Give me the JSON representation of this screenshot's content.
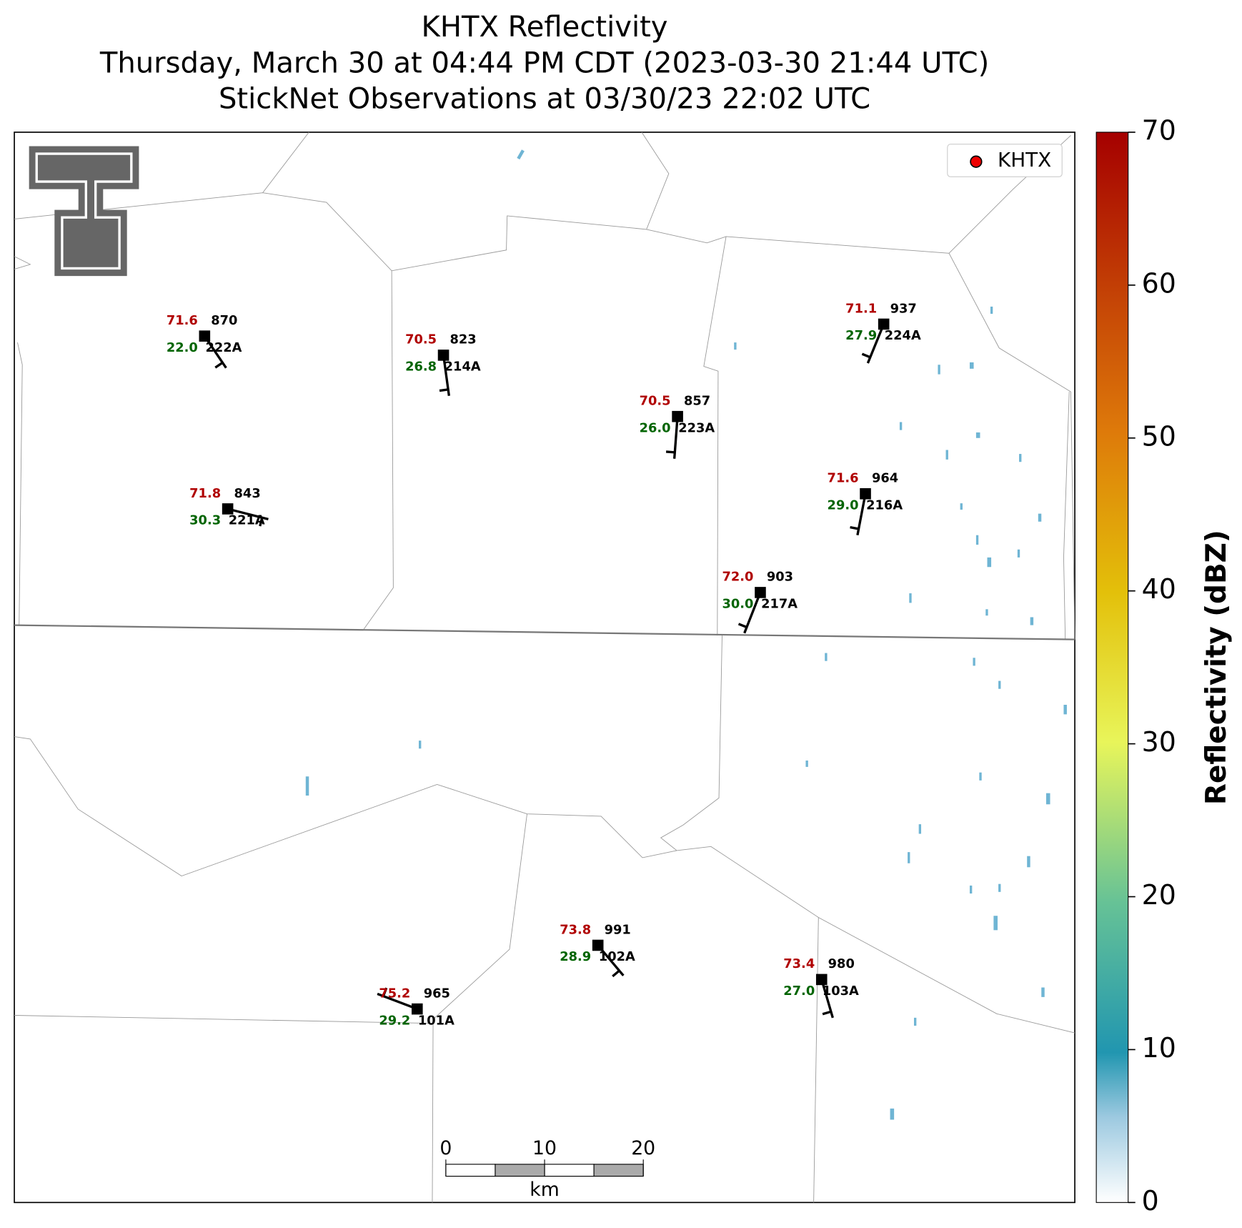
{
  "title": [
    "KHTX Reflectivity",
    "Thursday, March 30 at 04:44 PM CDT (2023-03-30 21:44 UTC)",
    "StickNet Observations at 03/30/23 22:02 UTC"
  ],
  "legend": "KHTX",
  "stations": [
    {
      "id": "222A",
      "temperature": "71.6",
      "dewpoint": "22.0",
      "pressure": 870
    },
    {
      "id": "214A",
      "temperature": "70.5",
      "dewpoint": "26.8",
      "pressure": 823
    },
    {
      "id": "223A",
      "temperature": "70.5",
      "dewpoint": "26.0",
      "pressure": 857
    },
    {
      "id": "221A",
      "temperature": "71.8",
      "dewpoint": "30.3",
      "pressure": 843
    },
    {
      "id": "217A",
      "temperature": "72.0",
      "dewpoint": "30.0",
      "pressure": 903
    },
    {
      "id": "224A",
      "temperature": "71.1",
      "dewpoint": "27.9",
      "pressure": 937
    },
    {
      "id": "216A",
      "temperature": "71.6",
      "dewpoint": "29.0",
      "pressure": 964
    },
    {
      "id": "102A",
      "temperature": "73.8",
      "dewpoint": "28.9",
      "pressure": 991
    },
    {
      "id": "101A",
      "temperature": "75.2",
      "dewpoint": "29.2",
      "pressure": 965
    },
    {
      "id": "103A",
      "temperature": "73.4",
      "dewpoint": "27.0",
      "pressure": 980
    }
  ],
  "scale_bar": {
    "ticks": [
      0,
      10,
      20
    ],
    "unit": "km"
  },
  "colorbar": {
    "label": "Reflectivity (dBZ)",
    "lim": [
      0,
      70
    ],
    "ticks": [
      0,
      10,
      20,
      30,
      40,
      50,
      60,
      70
    ]
  }
}
